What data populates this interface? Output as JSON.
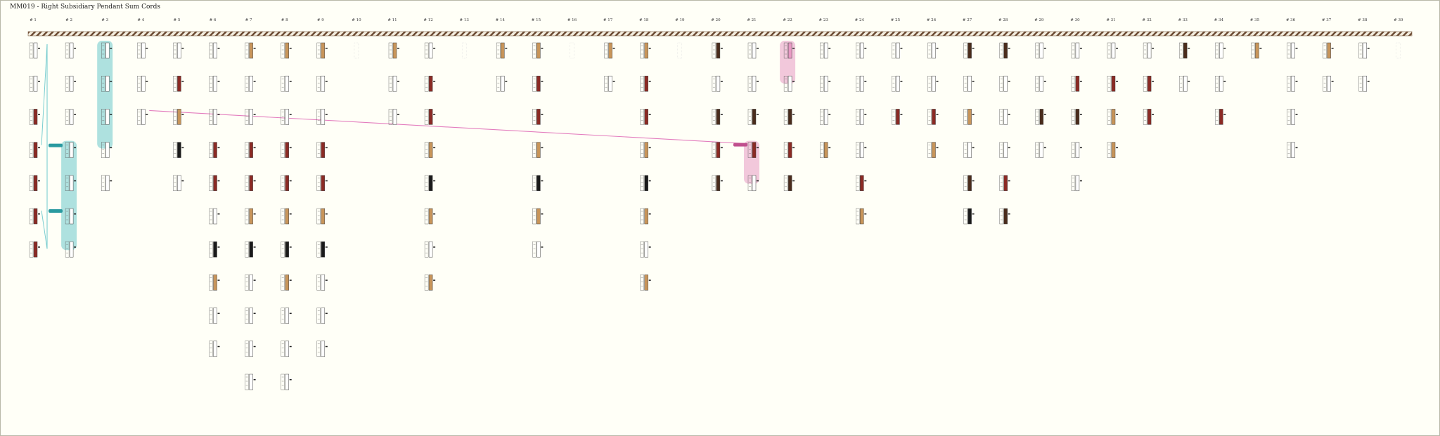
{
  "title": "MM019 - Right Subsidiary Pendant Sum Cords",
  "colors": {
    "background": "#fffff7",
    "frame": "#b8b8a8",
    "teal": "#6cc8cc",
    "teal_dark": "#2a9aa0",
    "pink": "#e89ac4",
    "pink_dark": "#c0508e",
    "link": "#e070b8",
    "light_brown": "#c8955a",
    "dark_red": "#8b2a24",
    "dark_brown": "#4a2c1c",
    "black": "#1a1a1a",
    "white": "#ffffff"
  },
  "columns": [
    "# 1",
    "# 2",
    "# 3",
    "# 4",
    "# 5",
    "# 6",
    "# 7",
    "# 8",
    "# 9",
    "# 10",
    "# 11",
    "# 12",
    "# 13",
    "# 14",
    "# 15",
    "# 16",
    "# 17",
    "# 18",
    "# 19",
    "# 20",
    "# 21",
    "# 22",
    "# 23",
    "# 24",
    "# 25",
    "# 26",
    "# 27",
    "# 28",
    "# 29",
    "# 30",
    "# 31",
    "# 32",
    "# 33",
    "# 34",
    "# 35",
    "# 36",
    "# 37",
    "# 38",
    "# 39"
  ],
  "cords": [
    [
      "W",
      "W",
      "DR",
      "DR",
      "DR",
      "DR",
      "DR"
    ],
    [
      "W",
      "W",
      "W",
      "W",
      "W",
      "W",
      "W"
    ],
    [
      "W",
      "W",
      "W",
      "W",
      "W"
    ],
    [
      "W",
      "W",
      "W"
    ],
    [
      "W",
      "DR",
      "LB",
      "BK",
      "W"
    ],
    [
      "W",
      "W",
      "W",
      "DR",
      "DR",
      "W",
      "BK",
      "LB",
      "W",
      "W"
    ],
    [
      "LB",
      "W",
      "W",
      "DR",
      "DR",
      "LB",
      "BK",
      "W",
      "W",
      "W",
      "W"
    ],
    [
      "LB",
      "W",
      "W",
      "DR",
      "DR",
      "LB",
      "BK",
      "LB",
      "W",
      "W",
      "W"
    ],
    [
      "LB",
      "W",
      "W",
      "DR",
      "DR",
      "LB",
      "BK",
      "W",
      "W",
      "W"
    ],
    [
      "N"
    ],
    [
      "LB",
      "W",
      "W"
    ],
    [
      "W",
      "DR",
      "DR",
      "LB",
      "BK",
      "LB",
      "W",
      "LB"
    ],
    [
      "N"
    ],
    [
      "LB",
      "W"
    ],
    [
      "LB",
      "DR",
      "DR",
      "LB",
      "BK",
      "LB",
      "W"
    ],
    [
      "N"
    ],
    [
      "LB",
      "W"
    ],
    [
      "LB",
      "DR",
      "DR",
      "LB",
      "BK",
      "LB",
      "W",
      "LB"
    ],
    [
      "N"
    ],
    [
      "DB",
      "W",
      "DB",
      "DR",
      "DB"
    ],
    [
      "W",
      "W",
      "DB",
      "DR",
      "W"
    ],
    [
      "P",
      "W",
      "DB",
      "DR",
      "DB"
    ],
    [
      "W",
      "W",
      "W",
      "LB"
    ],
    [
      "W",
      "W",
      "W",
      "W",
      "DR",
      "LB"
    ],
    [
      "W",
      "W",
      "DR"
    ],
    [
      "W",
      "W",
      "DR",
      "LB"
    ],
    [
      "DB",
      "W",
      "LB",
      "W",
      "DB",
      "BK"
    ],
    [
      "DB",
      "W",
      "W",
      "W",
      "DR",
      "DB"
    ],
    [
      "W",
      "W",
      "DB",
      "W"
    ],
    [
      "W",
      "DR",
      "DB",
      "W",
      "W"
    ],
    [
      "W",
      "DR",
      "LB",
      "LB"
    ],
    [
      "W",
      "DR",
      "DR"
    ],
    [
      "DB",
      "W"
    ],
    [
      "W",
      "W",
      "DR"
    ],
    [
      "LB"
    ],
    [
      "W",
      "W",
      "W",
      "W"
    ],
    [
      "LB",
      "W"
    ],
    [
      "W",
      "W"
    ],
    [
      "N"
    ]
  ]
}
